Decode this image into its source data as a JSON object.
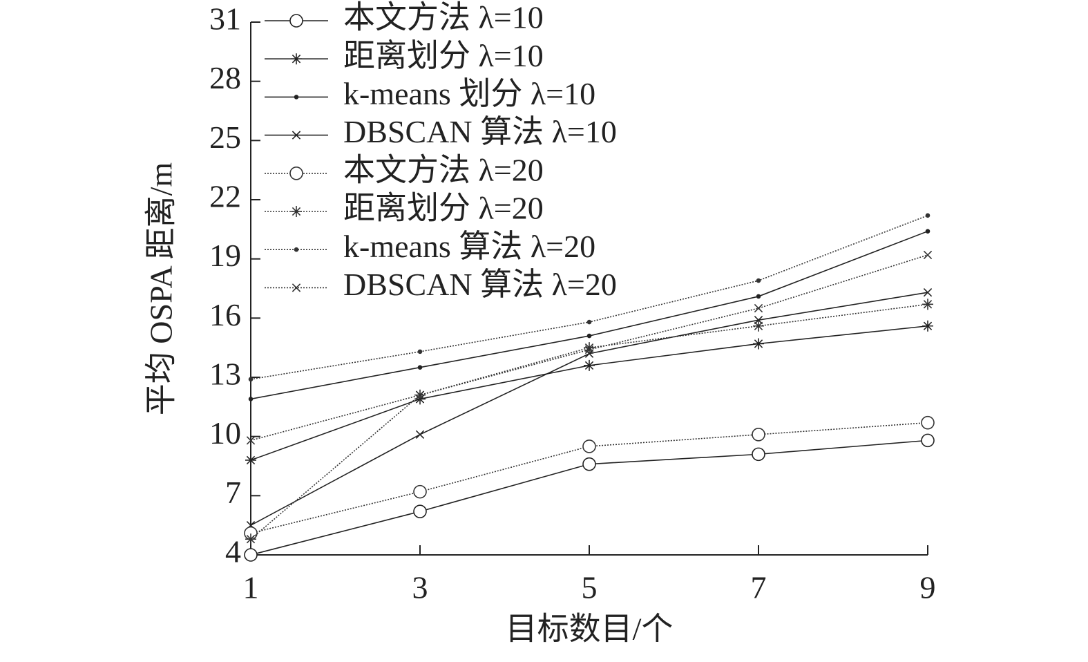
{
  "chart_data": {
    "type": "line",
    "xlabel": "目标数目/个",
    "ylabel": "平均 OSPA 距离/m",
    "x": [
      1,
      3,
      5,
      7,
      9
    ],
    "xlim": [
      1,
      9
    ],
    "xticks": [
      1,
      3,
      5,
      7,
      9
    ],
    "ylim": [
      4,
      31
    ],
    "yticks": [
      4,
      7,
      10,
      13,
      16,
      19,
      22,
      25,
      28,
      31
    ],
    "legend": "upper-left",
    "series": [
      {
        "name": "本文方法 λ=10",
        "color": "#222222",
        "line_style": "solid",
        "marker": "circle",
        "values": [
          4.0,
          6.2,
          8.6,
          9.1,
          9.8
        ]
      },
      {
        "name": "距离划分 λ=10",
        "color": "#222222",
        "line_style": "solid",
        "marker": "star",
        "values": [
          8.8,
          11.9,
          13.6,
          14.7,
          15.6
        ]
      },
      {
        "name": "k-means 划分 λ=10",
        "color": "#222222",
        "line_style": "solid",
        "marker": "dot",
        "values": [
          11.9,
          13.5,
          15.1,
          17.1,
          20.4
        ]
      },
      {
        "name": "DBSCAN 算法 λ=10",
        "color": "#222222",
        "line_style": "solid",
        "marker": "x",
        "values": [
          5.5,
          10.1,
          14.2,
          15.9,
          17.3
        ]
      },
      {
        "name": "本文方法 λ=20",
        "color": "#333333",
        "line_style": "dotted",
        "marker": "circle",
        "values": [
          5.1,
          7.2,
          9.5,
          10.1,
          10.7
        ]
      },
      {
        "name": "距离划分 λ=20",
        "color": "#333333",
        "line_style": "dotted",
        "marker": "star",
        "values": [
          4.8,
          12.1,
          14.5,
          15.6,
          16.7
        ]
      },
      {
        "name": "k-means 算法 λ=20",
        "color": "#333333",
        "line_style": "dotted",
        "marker": "dot",
        "values": [
          12.9,
          14.3,
          15.8,
          17.9,
          21.2
        ]
      },
      {
        "name": "DBSCAN 算法 λ=20",
        "color": "#333333",
        "line_style": "dotted",
        "marker": "x",
        "values": [
          9.8,
          12.1,
          14.4,
          16.5,
          19.2
        ]
      }
    ]
  }
}
